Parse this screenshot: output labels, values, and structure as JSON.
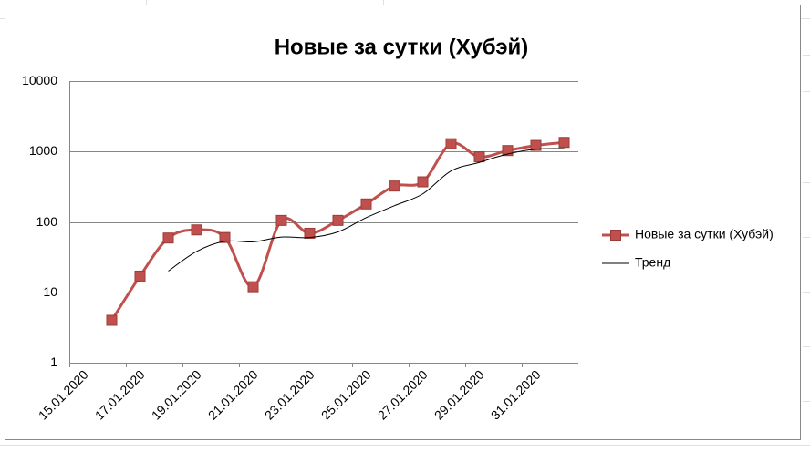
{
  "chart_data": {
    "type": "line",
    "title": "Новые за сутки (Хубэй)",
    "categories": [
      "15.01.2020",
      null,
      "17.01.2020",
      null,
      "19.01.2020",
      null,
      "21.01.2020",
      null,
      "23.01.2020",
      null,
      "25.01.2020",
      null,
      "27.01.2020",
      null,
      "29.01.2020",
      null,
      "31.01.2020",
      null
    ],
    "series": [
      {
        "name": "Новые за сутки (Хубэй)",
        "color": "#c0504d",
        "values": [
          null,
          4,
          17,
          59,
          77,
          60,
          12,
          105,
          69,
          105,
          180,
          323,
          371,
          1291,
          840,
          1032,
          1220,
          1347
        ]
      },
      {
        "name": "Тренд",
        "color": "#000000",
        "values": [
          null,
          null,
          null,
          20,
          38,
          53,
          52,
          61,
          60,
          72,
          115,
          170,
          250,
          530,
          700,
          920,
          1080,
          1100
        ]
      }
    ],
    "ylim": [
      1,
      10000
    ],
    "yticks": [
      1,
      10,
      100,
      1000,
      10000
    ],
    "log_scale": true,
    "grid": true,
    "legend": "right"
  }
}
